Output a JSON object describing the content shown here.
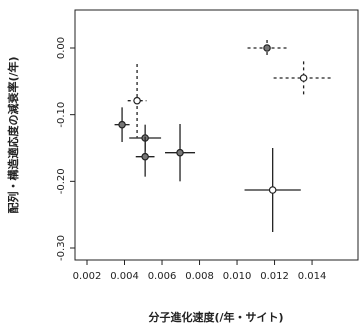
{
  "chart_data": {
    "type": "scatter",
    "xlabel": "分子進化速度(/年・サイト)",
    "ylabel": "配列・構造適応度の減衰率(/年)",
    "xlim": [
      0.00136,
      0.01645
    ],
    "ylim": [
      -0.318,
      0.057
    ],
    "xticks": [
      0.002,
      0.004,
      0.006,
      0.008,
      {
        "value": 0.01,
        "label": "0.010"
      },
      0.012,
      0.014
    ],
    "yticks": [
      {
        "value": 0,
        "label": "0.00"
      },
      {
        "value": -0.1,
        "label": "-0.10"
      },
      {
        "value": -0.2,
        "label": "-0.20"
      },
      {
        "value": -0.3,
        "label": "-0.30"
      }
    ],
    "color": "#222222",
    "points": [
      {
        "x": 0.0116,
        "y": 0.0,
        "xerr": 0.00104,
        "yerr": 0.012,
        "line_style": "dashed",
        "marker": "filled"
      },
      {
        "x": 0.01355,
        "y": -0.045,
        "xerr": 0.0016,
        "yerr": 0.025,
        "line_style": "dashed",
        "marker": "open"
      },
      {
        "x": 0.00467,
        "y": -0.079,
        "xerr": 0.0005,
        "yerr": 0.055,
        "line_style": "dashed",
        "marker": "open"
      },
      {
        "x": 0.00387,
        "y": -0.115,
        "xerr": 0.0004,
        "yerr": 0.026,
        "line_style": "solid",
        "marker": "filled"
      },
      {
        "x": 0.0051,
        "y": -0.135,
        "xerr": 0.00085,
        "yerr": 0.02,
        "line_style": "solid",
        "marker": "filled"
      },
      {
        "x": 0.0051,
        "y": -0.163,
        "xerr": 0.0005,
        "yerr": 0.03,
        "line_style": "solid",
        "marker": "filled"
      },
      {
        "x": 0.00696,
        "y": -0.157,
        "xerr": 0.0008,
        "yerr": 0.043,
        "line_style": "solid",
        "marker": "filled"
      },
      {
        "x": 0.0119,
        "y": -0.213,
        "xerr": 0.0015,
        "yerr": 0.063,
        "line_style": "solid",
        "marker": "open"
      }
    ]
  }
}
